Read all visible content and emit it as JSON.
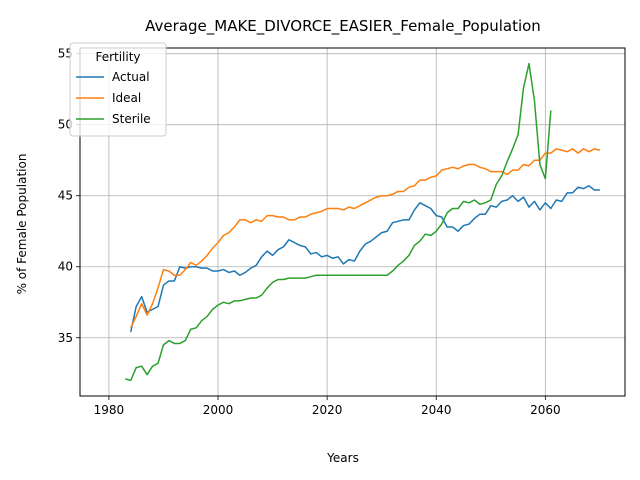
{
  "chart_data": {
    "type": "line",
    "title": "Average_MAKE_DIVORCE_EASIER_Female_Population",
    "xlabel": "Years",
    "ylabel": "% of Female Population",
    "xlim": [
      1980.3,
      1974.7
    ],
    "ylim": [
      30.9,
      55.4
    ],
    "xticks": [
      1980,
      2000,
      2020,
      2040,
      2060
    ],
    "yticks": [
      35,
      40,
      45,
      50,
      55
    ],
    "grid": true,
    "legend": {
      "title": "Fertility",
      "placement": "upper-left"
    },
    "colors": {
      "Actual": "#1f77b4",
      "Ideal": "#ff7f0e",
      "Sterile": "#2ca02c"
    },
    "series": [
      {
        "name": "Actual",
        "x": [
          1984,
          1985,
          1986,
          1987,
          1988,
          1989,
          1990,
          1991,
          1992,
          1993,
          1994,
          1995,
          1996,
          1997,
          1998,
          1999,
          2000,
          2001,
          2002,
          2003,
          2004,
          2005,
          2006,
          2007,
          2008,
          2009,
          2010,
          2011,
          2012,
          2013,
          2014,
          2015,
          2016,
          2017,
          2018,
          2019,
          2020,
          2021,
          2022,
          2023,
          2024,
          2025,
          2026,
          2027,
          2028,
          2029,
          2030,
          2031,
          2032,
          2033,
          2034,
          2035,
          2036,
          2037,
          2038,
          2039,
          2040,
          2041,
          2042,
          2043,
          2044,
          2045,
          2046,
          2047,
          2048,
          2049,
          2050,
          2051,
          2052,
          2053,
          2054,
          2055,
          2056,
          2057,
          2058,
          2059,
          2060,
          2061,
          2062,
          2063,
          2064,
          2065,
          2066,
          2067,
          2068,
          2069,
          2070
        ],
        "y": [
          35.4,
          37.2,
          37.9,
          36.8,
          37.0,
          37.2,
          38.7,
          39.0,
          39.0,
          40.0,
          39.9,
          40.0,
          40.0,
          39.9,
          39.9,
          39.7,
          39.7,
          39.8,
          39.6,
          39.7,
          39.4,
          39.6,
          39.9,
          40.1,
          40.7,
          41.1,
          40.8,
          41.2,
          41.4,
          41.9,
          41.7,
          41.5,
          41.4,
          40.9,
          41.0,
          40.7,
          40.8,
          40.6,
          40.7,
          40.2,
          40.5,
          40.4,
          41.1,
          41.6,
          41.8,
          42.1,
          42.4,
          42.5,
          43.1,
          43.2,
          43.3,
          43.3,
          44.0,
          44.5,
          44.3,
          44.1,
          43.6,
          43.5,
          42.8,
          42.8,
          42.5,
          42.9,
          43.0,
          43.4,
          43.7,
          43.7,
          44.3,
          44.2,
          44.6,
          44.7,
          45.0,
          44.6,
          44.9,
          44.2,
          44.6,
          44.0,
          44.5,
          44.1,
          44.7,
          44.6,
          45.2,
          45.2,
          45.6,
          45.5,
          45.7,
          45.4,
          45.4
        ]
      },
      {
        "name": "Ideal",
        "x": [
          1984,
          1985,
          1986,
          1987,
          1988,
          1989,
          1990,
          1991,
          1992,
          1993,
          1994,
          1995,
          1996,
          1997,
          1998,
          1999,
          2000,
          2001,
          2002,
          2003,
          2004,
          2005,
          2006,
          2007,
          2008,
          2009,
          2010,
          2011,
          2012,
          2013,
          2014,
          2015,
          2016,
          2017,
          2018,
          2019,
          2020,
          2021,
          2022,
          2023,
          2024,
          2025,
          2026,
          2027,
          2028,
          2029,
          2030,
          2031,
          2032,
          2033,
          2034,
          2035,
          2036,
          2037,
          2038,
          2039,
          2040,
          2041,
          2042,
          2043,
          2044,
          2045,
          2046,
          2047,
          2048,
          2049,
          2050,
          2051,
          2052,
          2053,
          2054,
          2055,
          2056,
          2057,
          2058,
          2059,
          2060,
          2061,
          2062,
          2063,
          2064,
          2065,
          2066,
          2067,
          2068,
          2069,
          2070
        ],
        "y": [
          35.7,
          36.5,
          37.4,
          36.6,
          37.4,
          38.5,
          39.8,
          39.7,
          39.4,
          39.4,
          39.8,
          40.3,
          40.1,
          40.4,
          40.8,
          41.3,
          41.7,
          42.2,
          42.4,
          42.8,
          43.3,
          43.3,
          43.1,
          43.3,
          43.2,
          43.6,
          43.6,
          43.5,
          43.5,
          43.3,
          43.3,
          43.5,
          43.5,
          43.7,
          43.8,
          43.9,
          44.1,
          44.1,
          44.1,
          44.0,
          44.2,
          44.1,
          44.3,
          44.5,
          44.7,
          44.9,
          45.0,
          45.0,
          45.1,
          45.3,
          45.3,
          45.6,
          45.7,
          46.1,
          46.1,
          46.3,
          46.4,
          46.8,
          46.9,
          47.0,
          46.9,
          47.1,
          47.2,
          47.2,
          47.0,
          46.9,
          46.7,
          46.7,
          46.7,
          46.5,
          46.8,
          46.8,
          47.2,
          47.1,
          47.5,
          47.5,
          48.0,
          48.0,
          48.3,
          48.2,
          48.1,
          48.3,
          48.0,
          48.3,
          48.1,
          48.3,
          48.2
        ]
      },
      {
        "name": "Sterile",
        "x": [
          1983,
          1984,
          1985,
          1986,
          1987,
          1988,
          1989,
          1990,
          1991,
          1992,
          1993,
          1994,
          1995,
          1996,
          1997,
          1998,
          1999,
          2000,
          2001,
          2002,
          2003,
          2004,
          2005,
          2006,
          2007,
          2008,
          2009,
          2010,
          2011,
          2012,
          2013,
          2014,
          2015,
          2016,
          2017,
          2018,
          2019,
          2020,
          2021,
          2022,
          2023,
          2024,
          2025,
          2026,
          2027,
          2028,
          2029,
          2030,
          2031,
          2032,
          2033,
          2034,
          2035,
          2036,
          2037,
          2038,
          2039,
          2040,
          2041,
          2042,
          2043,
          2044,
          2045,
          2046,
          2047,
          2048,
          2049,
          2050,
          2051,
          2052,
          2053,
          2054,
          2055,
          2056,
          2057,
          2058,
          2059,
          2060,
          2061
        ],
        "y": [
          32.1,
          32.0,
          32.9,
          33.0,
          32.4,
          33.0,
          33.2,
          34.5,
          34.8,
          34.6,
          34.6,
          34.8,
          35.6,
          35.7,
          36.2,
          36.5,
          37.0,
          37.3,
          37.5,
          37.4,
          37.6,
          37.6,
          37.7,
          37.8,
          37.8,
          38.0,
          38.5,
          38.9,
          39.1,
          39.1,
          39.2,
          39.2,
          39.2,
          39.2,
          39.3,
          39.4,
          39.4,
          39.4,
          39.4,
          39.4,
          39.4,
          39.4,
          39.4,
          39.4,
          39.4,
          39.4,
          39.4,
          39.4,
          39.4,
          39.7,
          40.1,
          40.4,
          40.8,
          41.5,
          41.8,
          42.3,
          42.2,
          42.5,
          43.0,
          43.8,
          44.1,
          44.1,
          44.6,
          44.5,
          44.7,
          44.4,
          44.5,
          44.7,
          45.8,
          46.4,
          47.4,
          48.3,
          49.3,
          52.6,
          54.3,
          51.7,
          47.2,
          46.2,
          51.0
        ]
      }
    ]
  }
}
